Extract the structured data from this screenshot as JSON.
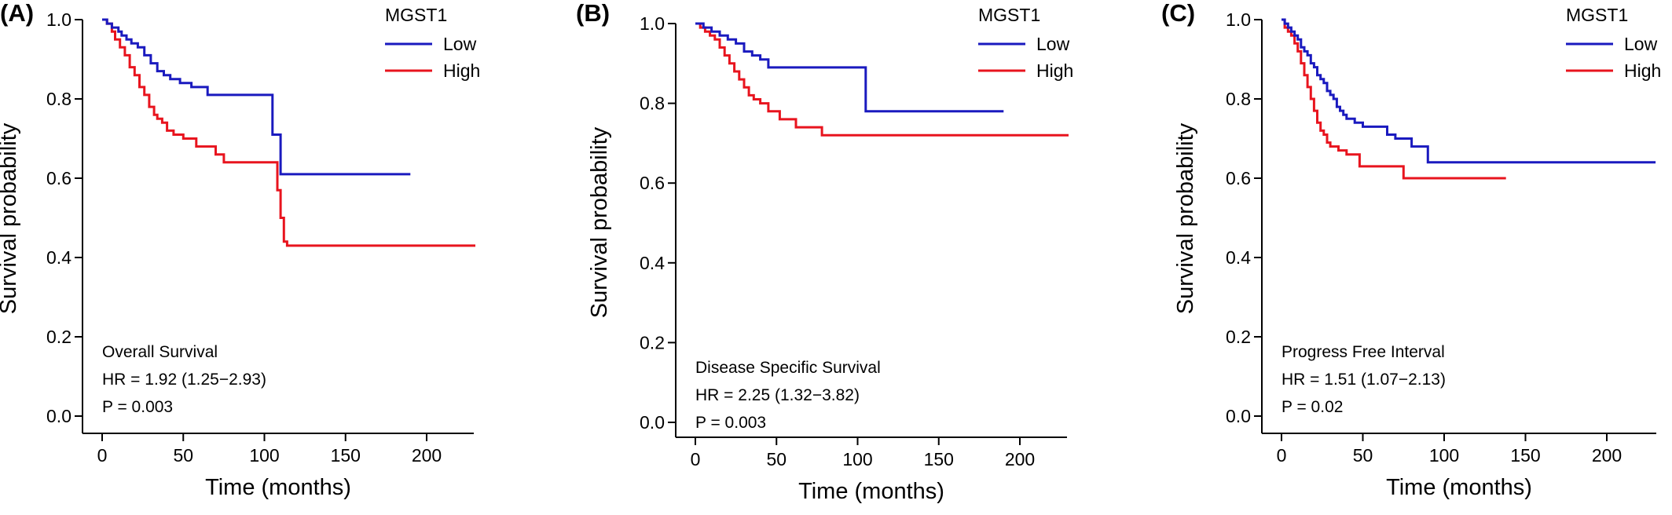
{
  "chart_data": [
    {
      "type": "line",
      "panel_label": "(A)",
      "xlabel": "Time (months)",
      "ylabel": "Survival probability",
      "xlim": [
        0,
        230
      ],
      "ylim": [
        0,
        1.0
      ],
      "xticks": [
        0,
        50,
        100,
        150,
        200
      ],
      "yticks": [
        "0.0",
        "0.2",
        "0.4",
        "0.6",
        "0.8",
        "1.0"
      ],
      "legend_title": "MGST1",
      "legend_position": "top-right",
      "colors": {
        "Low": "#1a1abf",
        "High": "#e8141e"
      },
      "annotations": [
        "Overall Survival",
        "HR = 1.92 (1.25−2.93)",
        "P = 0.003"
      ],
      "series": [
        {
          "name": "Low",
          "x": [
            0,
            3,
            6,
            10,
            12,
            15,
            18,
            22,
            26,
            30,
            34,
            38,
            42,
            48,
            55,
            65,
            80,
            95,
            105,
            110,
            190
          ],
          "y": [
            1.0,
            0.99,
            0.98,
            0.97,
            0.96,
            0.95,
            0.94,
            0.93,
            0.91,
            0.89,
            0.87,
            0.86,
            0.85,
            0.84,
            0.83,
            0.81,
            0.81,
            0.81,
            0.71,
            0.61,
            0.61
          ]
        },
        {
          "name": "High",
          "x": [
            0,
            3,
            6,
            8,
            11,
            14,
            17,
            20,
            23,
            26,
            29,
            32,
            34,
            37,
            40,
            44,
            50,
            58,
            70,
            75,
            82,
            100,
            108,
            110,
            112,
            114,
            230
          ],
          "y": [
            1.0,
            0.99,
            0.97,
            0.95,
            0.93,
            0.91,
            0.88,
            0.86,
            0.83,
            0.81,
            0.78,
            0.76,
            0.75,
            0.74,
            0.72,
            0.71,
            0.7,
            0.68,
            0.66,
            0.64,
            0.64,
            0.64,
            0.57,
            0.5,
            0.44,
            0.43,
            0.43
          ]
        }
      ]
    },
    {
      "type": "line",
      "panel_label": "(B)",
      "xlabel": "Time (months)",
      "ylabel": "Survival probability",
      "xlim": [
        0,
        230
      ],
      "ylim": [
        0,
        1.0
      ],
      "xticks": [
        0,
        50,
        100,
        150,
        200
      ],
      "yticks": [
        "0.0",
        "0.2",
        "0.4",
        "0.6",
        "0.8",
        "1.0"
      ],
      "legend_title": "MGST1",
      "legend_position": "top-right",
      "colors": {
        "Low": "#1a1abf",
        "High": "#e8141e"
      },
      "annotations": [
        "Disease Specific Survival",
        "HR = 2.25 (1.32−3.82)",
        "P = 0.003"
      ],
      "series": [
        {
          "name": "Low",
          "x": [
            0,
            5,
            10,
            15,
            20,
            25,
            30,
            35,
            40,
            45,
            55,
            80,
            105,
            190
          ],
          "y": [
            1.0,
            0.99,
            0.98,
            0.97,
            0.96,
            0.95,
            0.93,
            0.92,
            0.91,
            0.89,
            0.89,
            0.89,
            0.78,
            0.78
          ]
        },
        {
          "name": "High",
          "x": [
            0,
            3,
            6,
            9,
            12,
            15,
            18,
            21,
            24,
            27,
            30,
            33,
            36,
            40,
            45,
            52,
            62,
            78,
            230
          ],
          "y": [
            1.0,
            0.99,
            0.98,
            0.97,
            0.96,
            0.94,
            0.92,
            0.9,
            0.88,
            0.86,
            0.84,
            0.82,
            0.81,
            0.8,
            0.78,
            0.76,
            0.74,
            0.72,
            0.72
          ]
        }
      ]
    },
    {
      "type": "line",
      "panel_label": "(C)",
      "xlabel": "Time (months)",
      "ylabel": "Survival probability",
      "xlim": [
        0,
        230
      ],
      "ylim": [
        0,
        1.0
      ],
      "xticks": [
        0,
        50,
        100,
        150,
        200
      ],
      "yticks": [
        "0.0",
        "0.2",
        "0.4",
        "0.6",
        "0.8",
        "1.0"
      ],
      "legend_title": "MGST1",
      "legend_position": "top-right",
      "colors": {
        "Low": "#1a1abf",
        "High": "#e8141e"
      },
      "annotations": [
        "Progress Free Interval",
        "HR = 1.51 (1.07−2.13)",
        "P = 0.02"
      ],
      "series": [
        {
          "name": "Low",
          "x": [
            0,
            2,
            4,
            6,
            8,
            10,
            12,
            14,
            16,
            18,
            20,
            22,
            24,
            26,
            28,
            30,
            32,
            34,
            36,
            38,
            40,
            45,
            50,
            60,
            65,
            70,
            80,
            90,
            230
          ],
          "y": [
            1.0,
            0.99,
            0.98,
            0.97,
            0.96,
            0.95,
            0.93,
            0.92,
            0.91,
            0.89,
            0.88,
            0.86,
            0.85,
            0.84,
            0.82,
            0.81,
            0.8,
            0.78,
            0.77,
            0.76,
            0.75,
            0.74,
            0.73,
            0.73,
            0.71,
            0.7,
            0.68,
            0.64,
            0.64
          ]
        },
        {
          "name": "High",
          "x": [
            0,
            2,
            4,
            6,
            8,
            10,
            12,
            14,
            16,
            18,
            20,
            22,
            24,
            26,
            28,
            30,
            35,
            40,
            48,
            60,
            75,
            138
          ],
          "y": [
            1.0,
            0.98,
            0.97,
            0.96,
            0.94,
            0.92,
            0.89,
            0.86,
            0.83,
            0.8,
            0.77,
            0.74,
            0.72,
            0.71,
            0.69,
            0.68,
            0.67,
            0.66,
            0.63,
            0.63,
            0.6,
            0.6
          ]
        }
      ]
    }
  ]
}
